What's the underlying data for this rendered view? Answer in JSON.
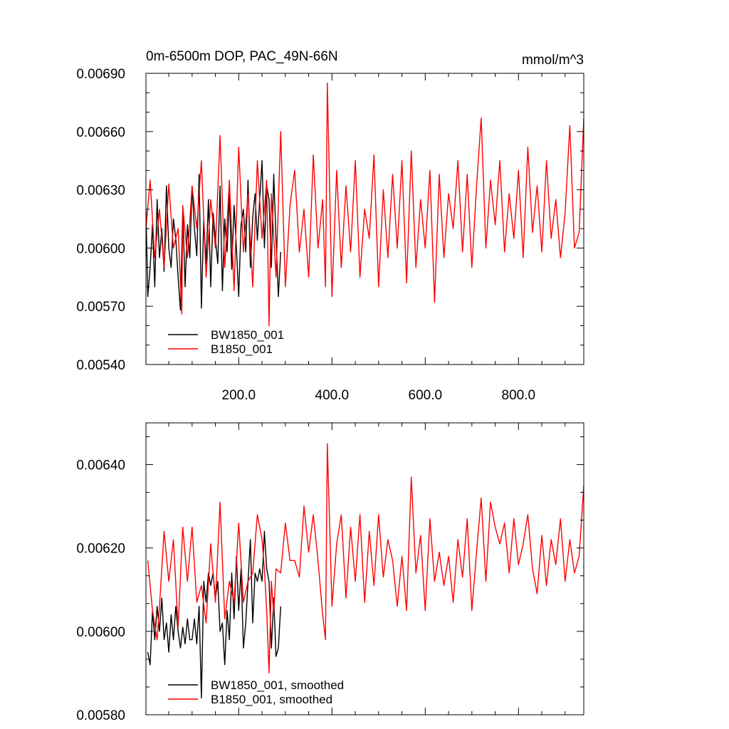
{
  "chart_data": [
    {
      "type": "line",
      "title_left": "0m-6500m DOP, PAC_49N-66N",
      "title_right": "mmol/m^3",
      "xlabel": "",
      "ylabel": "",
      "xlim": [
        1,
        940
      ],
      "ylim": [
        0.0054,
        0.0069
      ],
      "xticks": [
        200,
        400,
        600,
        800
      ],
      "xtick_labels": [
        "200.0",
        "400.0",
        "600.0",
        "800.0"
      ],
      "yticks": [
        0.0054,
        0.0057,
        0.006,
        0.0063,
        0.0066,
        0.0069
      ],
      "ytick_labels": [
        "0.00540",
        "0.00570",
        "0.00600",
        "0.00630",
        "0.00660",
        "0.00690"
      ],
      "grid": false,
      "legend_position": "bottom-left",
      "series": [
        {
          "name": "BW1850_001",
          "color": "#000000",
          "x": [
            1,
            5,
            10,
            15,
            20,
            25,
            30,
            35,
            40,
            45,
            50,
            55,
            60,
            65,
            70,
            75,
            80,
            85,
            90,
            95,
            100,
            105,
            110,
            115,
            120,
            125,
            130,
            135,
            140,
            145,
            150,
            155,
            160,
            165,
            170,
            175,
            180,
            185,
            190,
            195,
            200,
            205,
            210,
            215,
            220,
            225,
            230,
            235,
            240,
            245,
            250,
            255,
            260,
            265,
            270,
            275,
            280,
            285,
            290
          ],
          "values": [
            0.0062,
            0.00575,
            0.0059,
            0.00612,
            0.0058,
            0.00625,
            0.00595,
            0.0061,
            0.00588,
            0.00632,
            0.006,
            0.0059,
            0.00615,
            0.00605,
            0.00585,
            0.00568,
            0.0062,
            0.0058,
            0.00612,
            0.00595,
            0.00632,
            0.0061,
            0.00596,
            0.00638,
            0.00569,
            0.00615,
            0.00592,
            0.00625,
            0.0058,
            0.00618,
            0.00605,
            0.00592,
            0.00632,
            0.00578,
            0.00615,
            0.00598,
            0.00628,
            0.00589,
            0.00622,
            0.006,
            0.00575,
            0.00612,
            0.0062,
            0.00598,
            0.00635,
            0.0059,
            0.00616,
            0.00628,
            0.00604,
            0.00625,
            0.00645,
            0.006,
            0.00632,
            0.00625,
            0.0059,
            0.00638,
            0.00605,
            0.00575,
            0.00598
          ]
        },
        {
          "name": "B1850_001",
          "color": "#ff0000",
          "x": [
            1,
            10,
            20,
            30,
            40,
            50,
            60,
            70,
            78,
            80,
            90,
            100,
            110,
            120,
            130,
            140,
            150,
            160,
            170,
            180,
            190,
            200,
            210,
            220,
            230,
            240,
            250,
            260,
            265,
            270,
            280,
            290,
            300,
            310,
            320,
            330,
            340,
            350,
            360,
            370,
            380,
            386,
            390,
            400,
            410,
            420,
            430,
            440,
            450,
            460,
            470,
            480,
            490,
            500,
            510,
            520,
            530,
            540,
            550,
            560,
            570,
            580,
            590,
            600,
            610,
            620,
            630,
            640,
            650,
            660,
            670,
            680,
            690,
            700,
            710,
            720,
            730,
            740,
            750,
            760,
            770,
            780,
            790,
            800,
            810,
            820,
            830,
            840,
            850,
            860,
            870,
            880,
            890,
            900,
            910,
            920,
            930,
            940
          ],
          "values": [
            0.0061,
            0.00635,
            0.00595,
            0.0062,
            0.0059,
            0.00633,
            0.006,
            0.0061,
            0.00566,
            0.00622,
            0.00595,
            0.00632,
            0.0061,
            0.00645,
            0.00585,
            0.00625,
            0.006,
            0.00658,
            0.0059,
            0.00635,
            0.00578,
            0.00652,
            0.00598,
            0.00628,
            0.0058,
            0.00645,
            0.00605,
            0.00635,
            0.0056,
            0.00628,
            0.00585,
            0.0066,
            0.0058,
            0.00622,
            0.0064,
            0.00598,
            0.0062,
            0.00585,
            0.00648,
            0.006,
            0.00625,
            0.0058,
            0.00685,
            0.00575,
            0.0064,
            0.0059,
            0.00632,
            0.00598,
            0.00645,
            0.00585,
            0.0062,
            0.00605,
            0.00648,
            0.0058,
            0.0063,
            0.00595,
            0.00638,
            0.006,
            0.00645,
            0.00582,
            0.0065,
            0.0059,
            0.00625,
            0.006,
            0.0064,
            0.00572,
            0.00638,
            0.00595,
            0.00628,
            0.0061,
            0.00645,
            0.00598,
            0.00638,
            0.0059,
            0.00632,
            0.00667,
            0.006,
            0.00635,
            0.00612,
            0.00645,
            0.00598,
            0.00628,
            0.00605,
            0.0064,
            0.00595,
            0.00652,
            0.00608,
            0.00632,
            0.00598,
            0.00645,
            0.00605,
            0.00625,
            0.00595,
            0.00618,
            0.00663,
            0.006,
            0.00608,
            0.00667
          ]
        }
      ]
    },
    {
      "type": "line",
      "title_left": "",
      "title_right": "",
      "xlabel": "",
      "ylabel": "",
      "xlim": [
        1,
        940
      ],
      "ylim": [
        0.0058,
        0.0065
      ],
      "xticks": [
        200,
        400,
        600,
        800
      ],
      "xtick_labels": [],
      "yticks": [
        0.0058,
        0.006,
        0.0062,
        0.0064
      ],
      "ytick_labels": [
        "0.00580",
        "0.00600",
        "0.00620",
        "0.00640"
      ],
      "grid": false,
      "legend_position": "bottom-left",
      "series": [
        {
          "name": "BW1850_001, smoothed",
          "color": "#000000",
          "x": [
            5,
            10,
            15,
            20,
            25,
            30,
            35,
            40,
            45,
            50,
            55,
            60,
            65,
            70,
            75,
            80,
            85,
            90,
            95,
            100,
            105,
            110,
            115,
            120,
            125,
            130,
            135,
            140,
            145,
            150,
            155,
            160,
            165,
            170,
            175,
            180,
            185,
            190,
            195,
            200,
            205,
            210,
            215,
            220,
            225,
            230,
            235,
            240,
            245,
            250,
            255,
            260,
            265,
            270,
            275,
            280,
            285,
            290
          ],
          "values": [
            0.00595,
            0.00592,
            0.00605,
            0.00598,
            0.00606,
            0.006,
            0.00608,
            0.00598,
            0.00602,
            0.00595,
            0.00604,
            0.00598,
            0.00606,
            0.006,
            0.00596,
            0.00601,
            0.00597,
            0.00603,
            0.00598,
            0.00598,
            0.00603,
            0.00597,
            0.00606,
            0.00584,
            0.00612,
            0.00607,
            0.00614,
            0.00611,
            0.00614,
            0.00608,
            0.00612,
            0.006,
            0.00602,
            0.00592,
            0.00605,
            0.00598,
            0.00614,
            0.00603,
            0.00618,
            0.00605,
            0.00615,
            0.00596,
            0.00602,
            0.00612,
            0.00622,
            0.00602,
            0.00614,
            0.00612,
            0.00615,
            0.00612,
            0.00624,
            0.00615,
            0.00612,
            0.00596,
            0.00608,
            0.00594,
            0.00596,
            0.00606
          ]
        },
        {
          "name": "B1850_001, smoothed",
          "color": "#ff0000",
          "x": [
            5,
            15,
            25,
            30,
            40,
            50,
            60,
            70,
            80,
            90,
            100,
            110,
            120,
            130,
            140,
            150,
            160,
            170,
            180,
            190,
            200,
            210,
            220,
            230,
            240,
            250,
            255,
            260,
            265,
            270,
            275,
            280,
            290,
            300,
            310,
            320,
            330,
            340,
            350,
            360,
            370,
            380,
            386,
            390,
            400,
            410,
            420,
            430,
            440,
            450,
            460,
            470,
            480,
            490,
            500,
            510,
            520,
            530,
            540,
            550,
            560,
            570,
            580,
            590,
            600,
            610,
            620,
            630,
            640,
            650,
            660,
            670,
            680,
            690,
            700,
            710,
            720,
            730,
            740,
            750,
            760,
            770,
            780,
            790,
            800,
            810,
            820,
            830,
            840,
            850,
            860,
            870,
            880,
            890,
            900,
            910,
            920,
            930,
            940
          ],
          "values": [
            0.00617,
            0.00605,
            0.00598,
            0.00606,
            0.00624,
            0.00612,
            0.00622,
            0.00601,
            0.00625,
            0.00612,
            0.00625,
            0.00607,
            0.00611,
            0.00602,
            0.00621,
            0.00607,
            0.00631,
            0.00603,
            0.00612,
            0.00607,
            0.00626,
            0.00607,
            0.00612,
            0.00614,
            0.00628,
            0.00622,
            0.00615,
            0.00605,
            0.0059,
            0.00612,
            0.00604,
            0.00615,
            0.00614,
            0.00626,
            0.00617,
            0.00617,
            0.00613,
            0.0063,
            0.00619,
            0.00628,
            0.00617,
            0.00604,
            0.00598,
            0.00645,
            0.00606,
            0.00621,
            0.00628,
            0.00608,
            0.00625,
            0.00612,
            0.00628,
            0.00607,
            0.00624,
            0.00611,
            0.00628,
            0.00613,
            0.00622,
            0.00617,
            0.00606,
            0.00618,
            0.00605,
            0.00637,
            0.00614,
            0.00623,
            0.00605,
            0.00627,
            0.00612,
            0.00619,
            0.00611,
            0.00618,
            0.00607,
            0.00622,
            0.00613,
            0.00627,
            0.00605,
            0.00619,
            0.00632,
            0.00612,
            0.00631,
            0.00625,
            0.00621,
            0.00626,
            0.00614,
            0.00627,
            0.00616,
            0.00621,
            0.00628,
            0.00615,
            0.00609,
            0.00623,
            0.00611,
            0.00622,
            0.00616,
            0.00627,
            0.00612,
            0.00622,
            0.00614,
            0.00618,
            0.00635
          ]
        }
      ]
    }
  ]
}
